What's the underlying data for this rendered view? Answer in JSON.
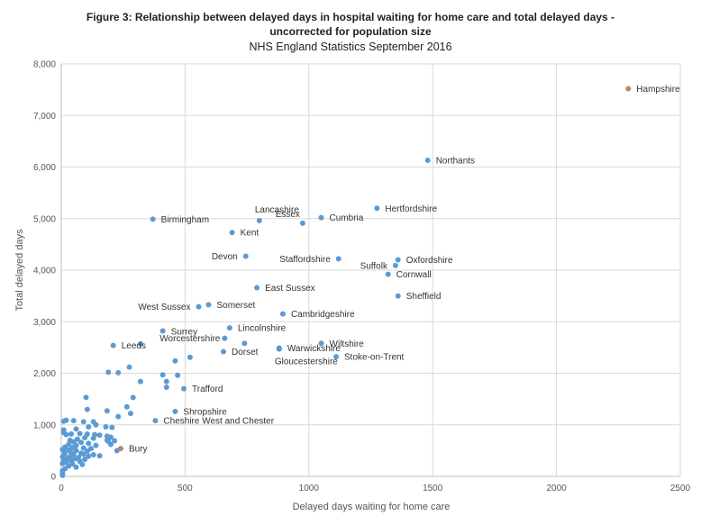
{
  "chart_data": {
    "type": "scatter",
    "title_line1": "Figure 3: Relationship between delayed days in hospital waiting for home care and total delayed days -",
    "title_line2": "uncorrected for population size",
    "subtitle": "NHS England Statistics September 2016",
    "xlabel": "Delayed days waiting for home care",
    "ylabel": "Total delayed days",
    "xlim": [
      0,
      2500
    ],
    "ylim": [
      0,
      8000
    ],
    "xticks": [
      "0",
      "500",
      "1000",
      "1500",
      "2000",
      "2500"
    ],
    "yticks": [
      "0",
      "1,000",
      "2,000",
      "3,000",
      "4,000",
      "5,000",
      "6,000",
      "7,000",
      "8,000"
    ],
    "grid": true,
    "colors": {
      "default": "#5b9bd5",
      "highlight": "#c0846a"
    },
    "labeled_points": [
      {
        "name": "Hampshire",
        "x": 2290,
        "y": 7520,
        "highlight": true
      },
      {
        "name": "Northants",
        "x": 1480,
        "y": 6130
      },
      {
        "name": "Hertfordshire",
        "x": 1275,
        "y": 5200
      },
      {
        "name": "Lancashire",
        "x": 800,
        "y": 4960
      },
      {
        "name": "Essex",
        "x": 975,
        "y": 4910
      },
      {
        "name": "Cumbria",
        "x": 1050,
        "y": 5020
      },
      {
        "name": "Birmingham",
        "x": 370,
        "y": 4990
      },
      {
        "name": "Kent",
        "x": 690,
        "y": 4730
      },
      {
        "name": "Devon",
        "x": 745,
        "y": 4270
      },
      {
        "name": "Staffordshire",
        "x": 1120,
        "y": 4220
      },
      {
        "name": "Oxfordshire",
        "x": 1360,
        "y": 4200
      },
      {
        "name": "Suffolk",
        "x": 1350,
        "y": 4090
      },
      {
        "name": "Cornwall",
        "x": 1320,
        "y": 3920
      },
      {
        "name": "East Sussex",
        "x": 790,
        "y": 3660
      },
      {
        "name": "Sheffield",
        "x": 1360,
        "y": 3500
      },
      {
        "name": "West Sussex",
        "x": 555,
        "y": 3290
      },
      {
        "name": "Somerset",
        "x": 595,
        "y": 3330
      },
      {
        "name": "Cambridgeshire",
        "x": 895,
        "y": 3150
      },
      {
        "name": "Lincolnshire",
        "x": 680,
        "y": 2880
      },
      {
        "name": "Surrey",
        "x": 410,
        "y": 2820
      },
      {
        "name": "Worcestershire",
        "x": 660,
        "y": 2680
      },
      {
        "name": "Leeds",
        "x": 210,
        "y": 2540
      },
      {
        "name": "Wiltshire",
        "x": 1050,
        "y": 2580
      },
      {
        "name": "Dorset",
        "x": 655,
        "y": 2420
      },
      {
        "name": "Warwickshire",
        "x": 880,
        "y": 2490
      },
      {
        "name": "Gloucestershire",
        "x": 880,
        "y": 2470
      },
      {
        "name": "Stoke-on-Trent",
        "x": 1110,
        "y": 2320
      },
      {
        "name": "Trafford",
        "x": 495,
        "y": 1700
      },
      {
        "name": "Shropshire",
        "x": 460,
        "y": 1260
      },
      {
        "name": "Cheshire West and Chester",
        "x": 380,
        "y": 1080
      },
      {
        "name": "Bury",
        "x": 240,
        "y": 540,
        "highlight": true
      }
    ],
    "points": [
      [
        320,
        2570
      ],
      [
        740,
        2580
      ],
      [
        460,
        2240
      ],
      [
        520,
        2310
      ],
      [
        190,
        2020
      ],
      [
        230,
        2010
      ],
      [
        275,
        2120
      ],
      [
        410,
        1970
      ],
      [
        470,
        1960
      ],
      [
        425,
        1840
      ],
      [
        320,
        1840
      ],
      [
        425,
        1730
      ],
      [
        100,
        1530
      ],
      [
        290,
        1530
      ],
      [
        265,
        1350
      ],
      [
        105,
        1300
      ],
      [
        185,
        1270
      ],
      [
        230,
        1160
      ],
      [
        280,
        1220
      ],
      [
        10,
        1070
      ],
      [
        20,
        1090
      ],
      [
        50,
        1080
      ],
      [
        90,
        1060
      ],
      [
        130,
        1060
      ],
      [
        140,
        1000
      ],
      [
        110,
        960
      ],
      [
        180,
        960
      ],
      [
        205,
        950
      ],
      [
        60,
        920
      ],
      [
        10,
        900
      ],
      [
        10,
        850
      ],
      [
        40,
        820
      ],
      [
        20,
        810
      ],
      [
        75,
        830
      ],
      [
        105,
        820
      ],
      [
        135,
        810
      ],
      [
        155,
        800
      ],
      [
        185,
        780
      ],
      [
        200,
        760
      ],
      [
        95,
        750
      ],
      [
        130,
        740
      ],
      [
        65,
        720
      ],
      [
        35,
        700
      ],
      [
        185,
        700
      ],
      [
        215,
        690
      ],
      [
        190,
        680
      ],
      [
        50,
        670
      ],
      [
        80,
        660
      ],
      [
        110,
        640
      ],
      [
        200,
        620
      ],
      [
        140,
        600
      ],
      [
        30,
        620
      ],
      [
        60,
        600
      ],
      [
        15,
        570
      ],
      [
        45,
        560
      ],
      [
        90,
        550
      ],
      [
        120,
        540
      ],
      [
        5,
        520
      ],
      [
        30,
        510
      ],
      [
        60,
        500
      ],
      [
        10,
        480
      ],
      [
        105,
        490
      ],
      [
        225,
        500
      ],
      [
        40,
        460
      ],
      [
        80,
        450
      ],
      [
        15,
        440
      ],
      [
        50,
        420
      ],
      [
        90,
        430
      ],
      [
        130,
        420
      ],
      [
        155,
        400
      ],
      [
        110,
        390
      ],
      [
        5,
        380
      ],
      [
        35,
        380
      ],
      [
        70,
        370
      ],
      [
        25,
        350
      ],
      [
        55,
        340
      ],
      [
        95,
        330
      ],
      [
        10,
        310
      ],
      [
        40,
        300
      ],
      [
        75,
        290
      ],
      [
        20,
        270
      ],
      [
        5,
        250
      ],
      [
        45,
        240
      ],
      [
        85,
        230
      ],
      [
        30,
        200
      ],
      [
        60,
        180
      ],
      [
        15,
        150
      ],
      [
        5,
        110
      ],
      [
        5,
        60
      ],
      [
        5,
        20
      ]
    ]
  }
}
